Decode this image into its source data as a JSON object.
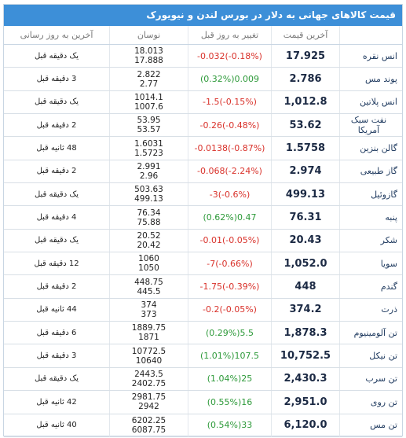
{
  "title": "قیمت کالاهای جهانی به دلار در بورس لندن و نیویورک",
  "table": {
    "headers": [
      "آخرین قیمت",
      "تغییر به روز قبل",
      "نوسان",
      "آخرین به روز رسانی"
    ],
    "rows": [
      [
        "انس نقره",
        "17.925",
        "-0.032(-0.18%)",
        "18.013",
        "17.888",
        "یک دقیقه قبل"
      ],
      [
        "پوند مس",
        "2.786",
        "(0.32%)0.009",
        "2.822",
        "2.77",
        "3 دقیقه قبل"
      ],
      [
        "انس پلاتین",
        "1,012.8",
        "-1.5(-0.15%)",
        "1014.1",
        "1007.6",
        "یک دقیقه قبل"
      ],
      [
        "نفت سبک آمریکا",
        "53.62",
        "-0.26(-0.48%)",
        "53.95",
        "53.57",
        "2 دقیقه قبل"
      ],
      [
        "گالن بنزین",
        "1.5758",
        "-0.0138(-0.87%)",
        "1.6031",
        "1.5723",
        "48 ثانیه قبل"
      ],
      [
        "گاز طبیعی",
        "2.974",
        "-0.068(-2.24%)",
        "2.991",
        "2.96",
        "2 دقیقه قبل"
      ],
      [
        "گازوئیل",
        "499.13",
        "-3(-0.6%)",
        "503.63",
        "499.13",
        "یک دقیقه قبل"
      ],
      [
        "پنبه",
        "76.31",
        "(0.62%)0.47",
        "76.34",
        "75.88",
        "4 دقیقه قبل"
      ],
      [
        "شکر",
        "20.43",
        "-0.01(-0.05%)",
        "20.52",
        "20.42",
        "یک دقیقه قبل"
      ],
      [
        "سویا",
        "1,052.0",
        "-7(-0.66%)",
        "1060",
        "1050",
        "12 دقیقه قبل"
      ],
      [
        "گندم",
        "448",
        "-1.75(-0.39%)",
        "448.75",
        "445.5",
        "2 دقیقه قبل"
      ],
      [
        "ذرت",
        "374.2",
        "-0.2(-0.05%)",
        "374",
        "373",
        "44 ثانیه قبل"
      ],
      [
        "تن آلومینیوم",
        "1,878.3",
        "(0.29%)5.5",
        "1889.75",
        "1871",
        "6 دقیقه قبل"
      ],
      [
        "تن نیکل",
        "10,752.5",
        "(1.01%)107.5",
        "10772.5",
        "10640",
        "3 دقیقه قبل"
      ],
      [
        "تن سرب",
        "2,430.3",
        "(1.04%)25",
        "2443.5",
        "2402.75",
        "یک دقیقه قبل"
      ],
      [
        "تن روی",
        "2,951.0",
        "(0.55%)16",
        "2981.75",
        "2942",
        "42 ثانیه قبل"
      ],
      [
        "تن مس",
        "6,120.0",
        "(0.54%)33",
        "6202.25",
        "6087.75",
        "40 ثانیه قبل"
      ]
    ]
  }
}
